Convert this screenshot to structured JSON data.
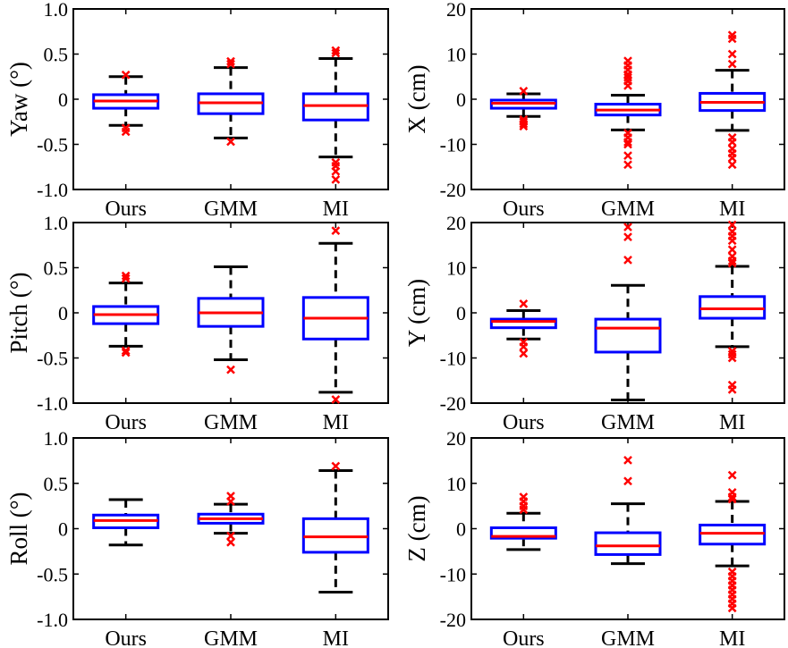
{
  "chart_data": [
    {
      "type": "box",
      "ylabel": "Yaw (°)",
      "ylim": [
        -1.0,
        1.0
      ],
      "yticks": [
        1.0,
        0.5,
        0,
        -0.5,
        -1.0
      ],
      "ytick_labels": [
        "1.0",
        "0.5",
        "0",
        "-0.5",
        "-1.0"
      ],
      "categories": [
        "Ours",
        "GMM",
        "MI"
      ],
      "boxes": [
        {
          "name": "Ours",
          "whisker_high": 0.25,
          "q3": 0.05,
          "median": -0.02,
          "q1": -0.1,
          "whisker_low": -0.29,
          "outliers": [
            0.27,
            -0.32,
            -0.36
          ]
        },
        {
          "name": "GMM",
          "whisker_high": 0.35,
          "q3": 0.06,
          "median": -0.04,
          "q1": -0.16,
          "whisker_low": -0.43,
          "outliers": [
            0.42,
            0.39,
            -0.47
          ]
        },
        {
          "name": "MI",
          "whisker_high": 0.45,
          "q3": 0.06,
          "median": -0.07,
          "q1": -0.23,
          "whisker_low": -0.64,
          "outliers": [
            0.54,
            0.51,
            -0.7,
            -0.74,
            -0.8,
            -0.89
          ]
        }
      ]
    },
    {
      "type": "box",
      "ylabel": "X (cm)",
      "ylim": [
        -20,
        20
      ],
      "yticks": [
        20,
        10,
        0,
        -10,
        -20
      ],
      "ytick_labels": [
        "20",
        "10",
        "0",
        "-10",
        "-20"
      ],
      "categories": [
        "Ours",
        "GMM",
        "MI"
      ],
      "boxes": [
        {
          "name": "Ours",
          "whisker_high": 1.2,
          "q3": -0.2,
          "median": -0.9,
          "q1": -2.0,
          "whisker_low": -3.8,
          "outliers": [
            1.8,
            -4.5,
            -5.0,
            -5.5,
            -6.0
          ]
        },
        {
          "name": "GMM",
          "whisker_high": 0.9,
          "q3": -1.1,
          "median": -2.4,
          "q1": -3.5,
          "whisker_low": -6.8,
          "outliers": [
            8.5,
            7.5,
            6.5,
            5.5,
            4.8,
            4.0,
            3.0,
            -7.5,
            -8.5,
            -9.5,
            -10.0,
            -12.5,
            -14.5
          ]
        },
        {
          "name": "MI",
          "whisker_high": 6.4,
          "q3": 1.3,
          "median": -0.7,
          "q1": -2.5,
          "whisker_low": -6.9,
          "outliers": [
            14.2,
            13.4,
            10.0,
            7.8,
            -8.5,
            -9.5,
            -11.0,
            -12.0,
            -13.0,
            -14.5
          ]
        }
      ]
    },
    {
      "type": "box",
      "ylabel": "Pitch (°)",
      "ylim": [
        -1.0,
        1.0
      ],
      "yticks": [
        1.0,
        0.5,
        0,
        -0.5,
        -1.0
      ],
      "ytick_labels": [
        "1.0",
        "0.5",
        "0",
        "-0.5",
        "-1.0"
      ],
      "categories": [
        "Ours",
        "GMM",
        "MI"
      ],
      "boxes": [
        {
          "name": "Ours",
          "whisker_high": 0.33,
          "q3": 0.07,
          "median": -0.02,
          "q1": -0.12,
          "whisker_low": -0.37,
          "outliers": [
            0.41,
            0.38,
            -0.42,
            -0.44
          ]
        },
        {
          "name": "GMM",
          "whisker_high": 0.51,
          "q3": 0.16,
          "median": 0.0,
          "q1": -0.15,
          "whisker_low": -0.52,
          "outliers": [
            -0.63
          ]
        },
        {
          "name": "MI",
          "whisker_high": 0.77,
          "q3": 0.17,
          "median": -0.06,
          "q1": -0.29,
          "whisker_low": -0.88,
          "outliers": [
            0.91,
            -0.96
          ]
        }
      ]
    },
    {
      "type": "box",
      "ylabel": "Y (cm)",
      "ylim": [
        -20,
        20
      ],
      "yticks": [
        20,
        10,
        0,
        -10,
        -20
      ],
      "ytick_labels": [
        "20",
        "10",
        "0",
        "-10",
        "-20"
      ],
      "categories": [
        "Ours",
        "GMM",
        "MI"
      ],
      "boxes": [
        {
          "name": "Ours",
          "whisker_high": 0.5,
          "q3": -1.4,
          "median": -1.9,
          "q1": -3.3,
          "whisker_low": -5.8,
          "outliers": [
            2.0,
            -6.5,
            -7.5,
            -9.0
          ]
        },
        {
          "name": "GMM",
          "whisker_high": 6.1,
          "q3": -1.4,
          "median": -3.4,
          "q1": -8.7,
          "whisker_low": -19.3,
          "outliers": [
            19.0,
            16.8,
            11.7
          ]
        },
        {
          "name": "MI",
          "whisker_high": 10.3,
          "q3": 3.6,
          "median": 0.9,
          "q1": -1.2,
          "whisker_low": -7.5,
          "outliers": [
            19.5,
            18.0,
            17.0,
            16.0,
            14.0,
            12.5,
            11.5,
            11.0,
            -8.5,
            -9.2,
            -10.0,
            -16.0,
            -17.0
          ]
        }
      ]
    },
    {
      "type": "box",
      "ylabel": "Roll (°)",
      "ylim": [
        -1.0,
        1.0
      ],
      "yticks": [
        1.0,
        0.5,
        0,
        -0.5,
        -1.0
      ],
      "ytick_labels": [
        "1.0",
        "0.5",
        "0",
        "-0.5",
        "-1.0"
      ],
      "categories": [
        "Ours",
        "GMM",
        "MI"
      ],
      "boxes": [
        {
          "name": "Ours",
          "whisker_high": 0.32,
          "q3": 0.15,
          "median": 0.09,
          "q1": 0.01,
          "whisker_low": -0.18,
          "outliers": []
        },
        {
          "name": "GMM",
          "whisker_high": 0.27,
          "q3": 0.16,
          "median": 0.11,
          "q1": 0.06,
          "whisker_low": -0.05,
          "outliers": [
            0.36,
            0.3,
            -0.08,
            -0.15
          ]
        },
        {
          "name": "MI",
          "whisker_high": 0.64,
          "q3": 0.11,
          "median": -0.09,
          "q1": -0.26,
          "whisker_low": -0.7,
          "outliers": [
            0.69
          ]
        }
      ]
    },
    {
      "type": "box",
      "ylabel": "Z (cm)",
      "ylim": [
        -20,
        20
      ],
      "yticks": [
        20,
        10,
        0,
        -10,
        -20
      ],
      "ytick_labels": [
        "20",
        "10",
        "0",
        "-10",
        "-20"
      ],
      "categories": [
        "Ours",
        "GMM",
        "MI"
      ],
      "boxes": [
        {
          "name": "Ours",
          "whisker_high": 3.4,
          "q3": 0.2,
          "median": -1.7,
          "q1": -2.1,
          "whisker_low": -4.6,
          "outliers": [
            7.0,
            6.0,
            5.0,
            4.2
          ]
        },
        {
          "name": "GMM",
          "whisker_high": 5.5,
          "q3": -0.9,
          "median": -3.8,
          "q1": -5.7,
          "whisker_low": -7.7,
          "outliers": [
            15.1,
            10.5
          ]
        },
        {
          "name": "MI",
          "whisker_high": 6.0,
          "q3": 0.8,
          "median": -1.0,
          "q1": -3.4,
          "whisker_low": -8.2,
          "outliers": [
            11.8,
            8.0,
            7.0,
            6.5,
            -9.5,
            -10.5,
            -11.5,
            -12.5,
            -13.5,
            -14.5,
            -15.5,
            -16.5,
            -17.5
          ]
        }
      ]
    }
  ],
  "colors": {
    "box": "#0000ff",
    "median": "#ff0000",
    "outlier": "#ff0000",
    "whisker": "#000000",
    "axis": "#000000"
  }
}
